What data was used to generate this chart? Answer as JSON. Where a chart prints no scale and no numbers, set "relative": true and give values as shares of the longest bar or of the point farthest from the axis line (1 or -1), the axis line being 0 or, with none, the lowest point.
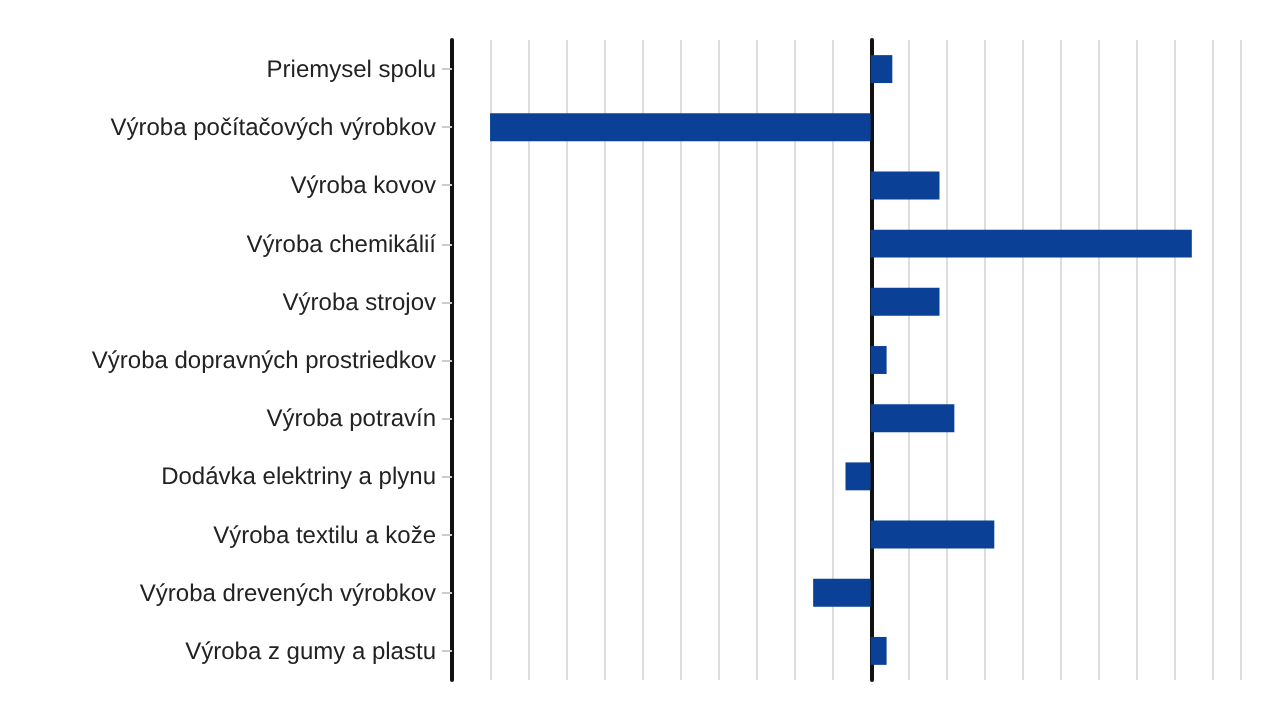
{
  "chart_data": {
    "type": "bar",
    "orientation": "horizontal",
    "relative": true,
    "grid": "x",
    "categories": [
      "Priemysel spolu",
      "Výroba počítačových výrobkov",
      "Výroba kovov",
      "Výroba chemikálií",
      "Výroba strojov",
      "Výroba dopravných prostriedkov",
      "Výroba potravín",
      "Dodávka elektriny a plynu",
      "Výroba textilu a kože",
      "Výroba drevených výrobkov",
      "Výroba z gumy a plastu"
    ],
    "values": [
      0.057,
      -1,
      0.181,
      0.844,
      0.181,
      0.042,
      0.22,
      -0.066,
      0.325,
      -0.151,
      0.042
    ],
    "color": "#0a4196"
  }
}
